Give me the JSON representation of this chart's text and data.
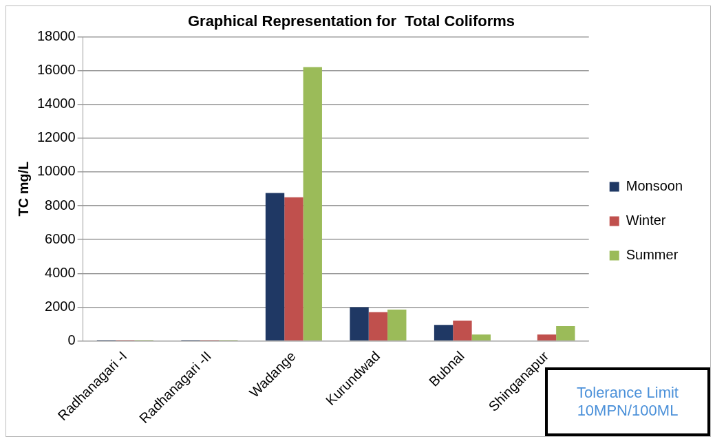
{
  "chart_data": {
    "type": "bar",
    "title": "Graphical Representation for  Total Coliforms",
    "ylabel": "TC mg/L",
    "categories": [
      "Radhanagari -I",
      "Radhanagari -II",
      "Wadange",
      "Kurundwad",
      "Bubnal",
      "Shinganapur"
    ],
    "series": [
      {
        "name": "Monsoon",
        "color": "#1f3864",
        "values": [
          50,
          50,
          8750,
          2000,
          950,
          0
        ]
      },
      {
        "name": "Winter",
        "color": "#c0504d",
        "values": [
          50,
          50,
          8500,
          1700,
          1200,
          380
        ]
      },
      {
        "name": "Summer",
        "color": "#9bbb59",
        "values": [
          50,
          50,
          16200,
          1850,
          380,
          880
        ]
      }
    ],
    "ylim": [
      0,
      18000
    ],
    "yticks": [
      0,
      2000,
      4000,
      6000,
      8000,
      10000,
      12000,
      14000,
      16000,
      18000
    ],
    "grid": "y",
    "legend": "right",
    "annotations": [
      "Tolerance Limit 10MPN/100ML"
    ]
  }
}
